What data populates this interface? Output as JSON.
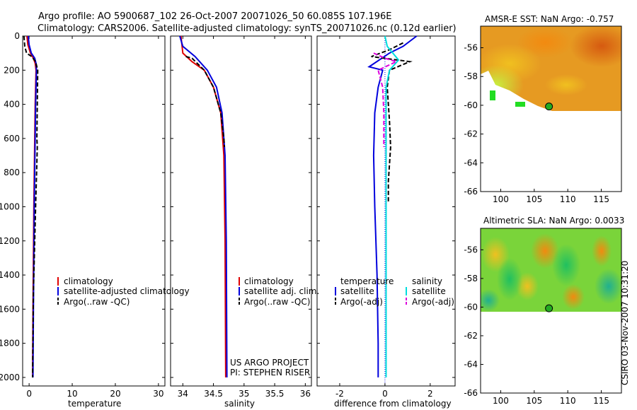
{
  "header": {
    "line1": "Argo profile: AO 5900687_102 26-Oct-2007 20071026_50 60.085S 107.196E",
    "line2": "Climatology: CARS2006. Satellite-adjusted climatology: synTS_20071026.nc (0.12d earlier)"
  },
  "side_text": "CSIRO 03-Nov-2007 10:31:20",
  "chart_data": [
    {
      "id": "temperature",
      "type": "line",
      "xlabel": "temperature",
      "xlim": [
        -1.5,
        31.5
      ],
      "ylim": [
        2050,
        0
      ],
      "xticks": [
        0,
        10,
        20,
        30
      ],
      "yticks": [
        0,
        200,
        400,
        600,
        800,
        1000,
        1200,
        1400,
        1600,
        1800,
        2000
      ],
      "legend": [
        "climatology",
        "satellite-adjusted climatology",
        "Argo(..raw -QC)"
      ],
      "series": [
        {
          "name": "climatology",
          "color": "#e00000",
          "dash": false,
          "x": [
            -0.5,
            -0.3,
            0.3,
            1.0,
            1.4,
            1.6,
            1.4,
            1.1,
            0.9,
            0.8
          ],
          "y": [
            0,
            50,
            100,
            130,
            160,
            200,
            400,
            1000,
            1600,
            2000
          ]
        },
        {
          "name": "satellite-adjusted climatology",
          "color": "#0000dd",
          "dash": false,
          "x": [
            -0.2,
            0.0,
            0.5,
            1.3,
            1.6,
            1.7,
            1.5,
            1.2,
            1.0,
            0.9
          ],
          "y": [
            0,
            50,
            100,
            130,
            160,
            200,
            400,
            1000,
            1600,
            2000
          ]
        },
        {
          "name": "Argo(..raw -QC)",
          "color": "#000000",
          "dash": true,
          "x": [
            -1.2,
            -1.0,
            -0.6,
            0.6,
            1.5,
            2.0,
            1.9,
            1.8,
            1.9,
            1.5,
            1.0,
            0.8
          ],
          "y": [
            0,
            60,
            100,
            120,
            150,
            200,
            400,
            600,
            650,
            1000,
            1500,
            2000
          ]
        }
      ]
    },
    {
      "id": "salinity",
      "type": "line",
      "xlabel": "salinity",
      "xlim": [
        33.8,
        36.1
      ],
      "ylim": [
        2050,
        0
      ],
      "xticks": [
        34,
        34.5,
        35,
        35.5,
        36
      ],
      "legend": [
        "climatology",
        "satellite adj. clim.",
        "Argo(..raw -QC)"
      ],
      "annotation": [
        "US ARGO PROJECT",
        "PI: STEPHEN RISER"
      ],
      "series": [
        {
          "name": "climatology",
          "color": "#e00000",
          "dash": false,
          "x": [
            33.97,
            34.0,
            34.15,
            34.35,
            34.5,
            34.62,
            34.67,
            34.69,
            34.7
          ],
          "y": [
            0,
            100,
            150,
            200,
            300,
            450,
            700,
            1200,
            2000
          ]
        },
        {
          "name": "satellite adj. clim.",
          "color": "#0000dd",
          "dash": false,
          "x": [
            33.95,
            34.0,
            34.2,
            34.4,
            34.55,
            34.64,
            34.69,
            34.71,
            34.72
          ],
          "y": [
            0,
            60,
            120,
            200,
            300,
            450,
            700,
            1200,
            2000
          ]
        },
        {
          "name": "Argo(..raw -QC)",
          "color": "#000000",
          "dash": true,
          "x": [
            34.05,
            34.15,
            34.35,
            34.5,
            34.62,
            34.67,
            34.68
          ],
          "y": [
            120,
            130,
            200,
            300,
            450,
            600,
            650
          ]
        }
      ]
    },
    {
      "id": "difference",
      "type": "line",
      "xlabel": "difference from climatology",
      "xlim": [
        -3,
        3.1
      ],
      "ylim": [
        2050,
        0
      ],
      "xticks": [
        -2,
        0,
        2
      ],
      "legend_temperature_title": "temperature",
      "legend_salinity_title": "salinity",
      "legend_temperature": [
        "satellite",
        "Argo(-adj)"
      ],
      "legend_salinity": [
        "satellite",
        "Argo(-adj)"
      ],
      "series": [
        {
          "name": "temperature satellite",
          "color": "#0000dd",
          "dash": false,
          "x": [
            1.4,
            0.8,
            0.2,
            -0.7,
            -0.1,
            -0.3,
            -0.45,
            -0.5,
            -0.45,
            -0.35,
            -0.3,
            -0.3
          ],
          "y": [
            0,
            60,
            100,
            180,
            200,
            300,
            450,
            700,
            1000,
            1400,
            1800,
            2000
          ]
        },
        {
          "name": "temperature Argo(-adj)",
          "color": "#000000",
          "dash": true,
          "x": [
            0.8,
            0.2,
            -0.6,
            1.1,
            0.2,
            0.1,
            0.2,
            0.25,
            0.15,
            0.15
          ],
          "y": [
            40,
            80,
            120,
            150,
            200,
            300,
            500,
            650,
            850,
            980
          ]
        },
        {
          "name": "salinity satellite",
          "color": "#00dddd",
          "dash": false,
          "x": [
            0.0,
            0.1,
            0.6,
            0.2,
            0.05,
            0.05,
            0.05
          ],
          "y": [
            0,
            60,
            140,
            200,
            300,
            800,
            2000
          ]
        },
        {
          "name": "salinity Argo(-adj)",
          "color": "#dd00dd",
          "dash": true,
          "x": [
            -0.5,
            0.0,
            0.5,
            -0.3,
            -0.1,
            -0.05,
            -0.05
          ],
          "y": [
            100,
            130,
            150,
            200,
            300,
            450,
            650
          ]
        }
      ]
    },
    {
      "id": "sst_map",
      "type": "heatmap",
      "title": "AMSR-E SST: NaN Argo: -0.757",
      "xlim": [
        97,
        118
      ],
      "ylim": [
        -66,
        -54.5
      ],
      "xticks": [
        100,
        105,
        110,
        115
      ],
      "yticks": [
        -56,
        -58,
        -60,
        -62,
        -64,
        -66
      ],
      "float_position": {
        "lon": 107.196,
        "lat": -60.085
      }
    },
    {
      "id": "sla_map",
      "type": "heatmap",
      "title": "Altimetric SLA: NaN Argo: 0.0033",
      "xlim": [
        97,
        118
      ],
      "ylim": [
        -66,
        -54.5
      ],
      "xticks": [
        100,
        105,
        110,
        115
      ],
      "yticks": [
        -56,
        -58,
        -60,
        -62,
        -64,
        -66
      ],
      "float_position": {
        "lon": 107.196,
        "lat": -60.085
      }
    }
  ]
}
